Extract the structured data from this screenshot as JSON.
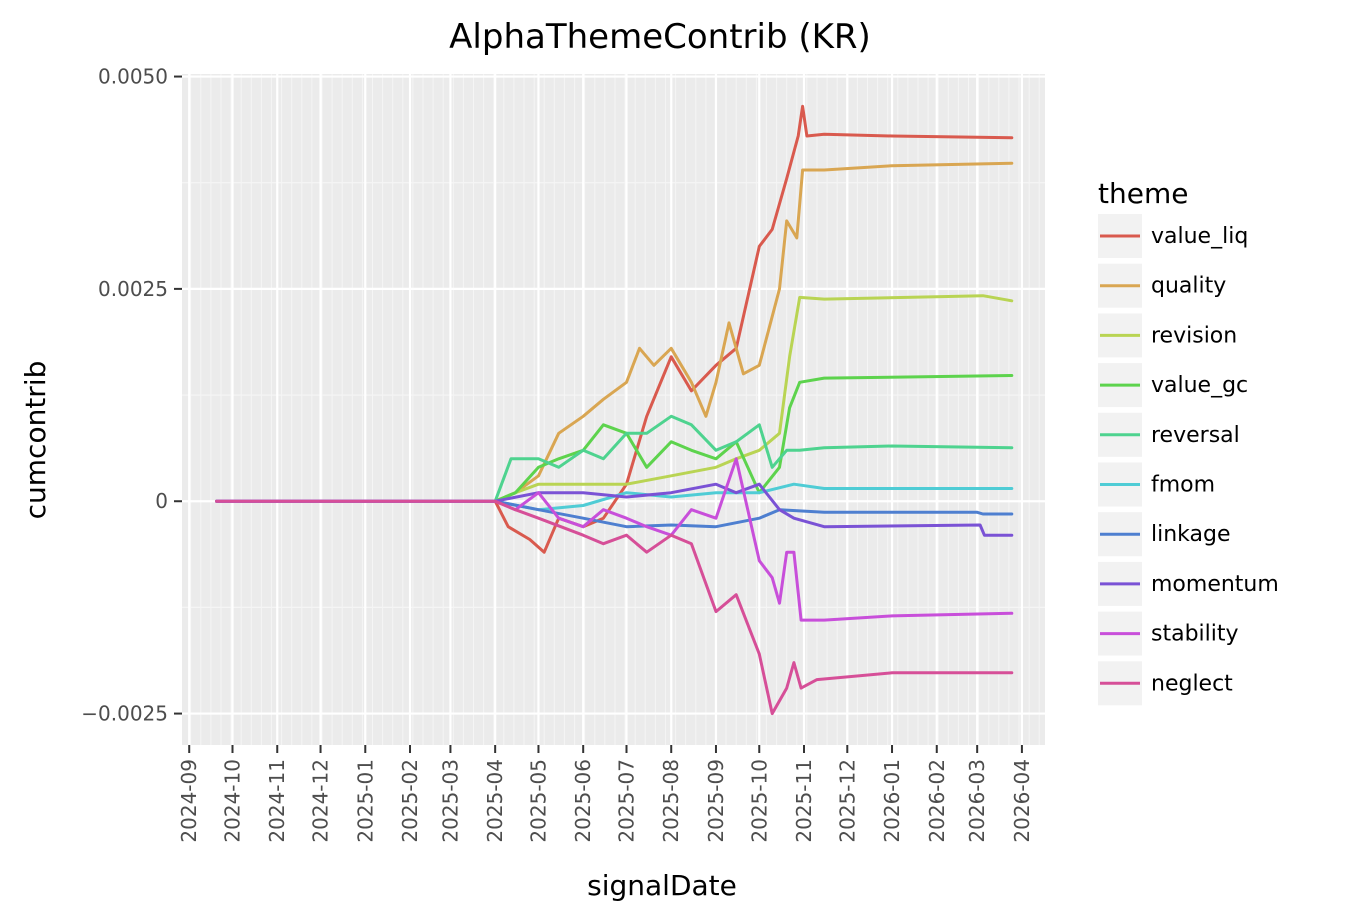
{
  "chart_data": {
    "type": "line",
    "title": "AlphaThemeContrib (KR)",
    "xlabel": "signalDate",
    "ylabel": "cumcontrib",
    "x_ticks": [
      "2024-09",
      "2024-10",
      "2024-11",
      "2024-12",
      "2025-01",
      "2025-02",
      "2025-03",
      "2025-04",
      "2025-05",
      "2025-06",
      "2025-07",
      "2025-08",
      "2025-09",
      "2025-10",
      "2025-11",
      "2025-12",
      "2026-01",
      "2026-02",
      "2026-03",
      "2026-04"
    ],
    "y_ticks": [
      {
        "value": 0.005,
        "label": "0.0050"
      },
      {
        "value": 0.0025,
        "label": "0.0025"
      },
      {
        "value": 0.0,
        "label": "0"
      },
      {
        "value": -0.0025,
        "label": "−0.0025"
      }
    ],
    "xlim": [
      "2024-08-27",
      "2026-04-17"
    ],
    "ylim": [
      -0.00287,
      0.00503
    ],
    "grid": true,
    "legend_title": "theme",
    "legend_position": "right",
    "series": [
      {
        "name": "value_liq",
        "color": "#D95A4E",
        "points": [
          [
            "2024-09-20",
            0
          ],
          [
            "2025-04-01",
            0
          ],
          [
            "2025-04-10",
            -0.0003
          ],
          [
            "2025-04-25",
            -0.00045
          ],
          [
            "2025-05-05",
            -0.0006
          ],
          [
            "2025-05-15",
            -0.0002
          ],
          [
            "2025-06-01",
            -0.0003
          ],
          [
            "2025-06-15",
            -0.0002
          ],
          [
            "2025-07-01",
            0.0002
          ],
          [
            "2025-07-15",
            0.001
          ],
          [
            "2025-08-01",
            0.0017
          ],
          [
            "2025-08-15",
            0.0013
          ],
          [
            "2025-09-01",
            0.0016
          ],
          [
            "2025-09-15",
            0.0018
          ],
          [
            "2025-10-01",
            0.003
          ],
          [
            "2025-10-10",
            0.0032
          ],
          [
            "2025-10-20",
            0.0038
          ],
          [
            "2025-10-28",
            0.0043
          ],
          [
            "2025-10-31",
            0.00465
          ],
          [
            "2025-11-03",
            0.0043
          ],
          [
            "2025-11-15",
            0.00432
          ],
          [
            "2026-01-01",
            0.0043
          ],
          [
            "2026-03-25",
            0.00428
          ]
        ]
      },
      {
        "name": "quality",
        "color": "#D9A652",
        "points": [
          [
            "2024-09-20",
            0
          ],
          [
            "2025-04-01",
            0
          ],
          [
            "2025-04-15",
            0.0001
          ],
          [
            "2025-05-01",
            0.0003
          ],
          [
            "2025-05-15",
            0.0008
          ],
          [
            "2025-06-01",
            0.001
          ],
          [
            "2025-06-15",
            0.0012
          ],
          [
            "2025-07-01",
            0.0014
          ],
          [
            "2025-07-10",
            0.0018
          ],
          [
            "2025-07-20",
            0.0016
          ],
          [
            "2025-08-01",
            0.0018
          ],
          [
            "2025-08-15",
            0.0014
          ],
          [
            "2025-08-25",
            0.001
          ],
          [
            "2025-09-01",
            0.0014
          ],
          [
            "2025-09-10",
            0.0021
          ],
          [
            "2025-09-20",
            0.0015
          ],
          [
            "2025-10-01",
            0.0016
          ],
          [
            "2025-10-15",
            0.0025
          ],
          [
            "2025-10-20",
            0.0033
          ],
          [
            "2025-10-27",
            0.0031
          ],
          [
            "2025-10-31",
            0.0039
          ],
          [
            "2025-11-15",
            0.0039
          ],
          [
            "2026-01-01",
            0.00395
          ],
          [
            "2026-03-25",
            0.00398
          ]
        ]
      },
      {
        "name": "revision",
        "color": "#B9D453",
        "points": [
          [
            "2024-09-20",
            0
          ],
          [
            "2025-04-01",
            0
          ],
          [
            "2025-04-15",
            0.0001
          ],
          [
            "2025-05-01",
            0.0002
          ],
          [
            "2025-06-01",
            0.0002
          ],
          [
            "2025-07-01",
            0.0002
          ],
          [
            "2025-08-01",
            0.0003
          ],
          [
            "2025-09-01",
            0.0004
          ],
          [
            "2025-09-15",
            0.0005
          ],
          [
            "2025-10-01",
            0.0006
          ],
          [
            "2025-10-15",
            0.0008
          ],
          [
            "2025-10-22",
            0.0017
          ],
          [
            "2025-10-29",
            0.0024
          ],
          [
            "2025-11-15",
            0.00238
          ],
          [
            "2026-03-05",
            0.00242
          ],
          [
            "2026-03-25",
            0.00236
          ]
        ]
      },
      {
        "name": "value_gc",
        "color": "#5DD34D",
        "points": [
          [
            "2024-09-20",
            0
          ],
          [
            "2025-04-01",
            0
          ],
          [
            "2025-04-15",
            0.0001
          ],
          [
            "2025-05-01",
            0.0004
          ],
          [
            "2025-05-15",
            0.0005
          ],
          [
            "2025-06-01",
            0.0006
          ],
          [
            "2025-06-15",
            0.0009
          ],
          [
            "2025-07-01",
            0.0008
          ],
          [
            "2025-07-15",
            0.0004
          ],
          [
            "2025-08-01",
            0.0007
          ],
          [
            "2025-08-15",
            0.0006
          ],
          [
            "2025-09-01",
            0.0005
          ],
          [
            "2025-09-15",
            0.0007
          ],
          [
            "2025-10-01",
            0.0001
          ],
          [
            "2025-10-15",
            0.0004
          ],
          [
            "2025-10-22",
            0.0011
          ],
          [
            "2025-10-29",
            0.0014
          ],
          [
            "2025-11-15",
            0.00145
          ],
          [
            "2026-03-25",
            0.00148
          ]
        ]
      },
      {
        "name": "reversal",
        "color": "#4ED38F",
        "points": [
          [
            "2024-09-20",
            0
          ],
          [
            "2025-04-01",
            0
          ],
          [
            "2025-04-12",
            0.0005
          ],
          [
            "2025-05-01",
            0.0005
          ],
          [
            "2025-05-15",
            0.0004
          ],
          [
            "2025-06-01",
            0.0006
          ],
          [
            "2025-06-15",
            0.0005
          ],
          [
            "2025-07-01",
            0.0008
          ],
          [
            "2025-07-15",
            0.0008
          ],
          [
            "2025-08-01",
            0.001
          ],
          [
            "2025-08-15",
            0.0009
          ],
          [
            "2025-09-01",
            0.0006
          ],
          [
            "2025-09-15",
            0.0007
          ],
          [
            "2025-10-01",
            0.0009
          ],
          [
            "2025-10-10",
            0.0004
          ],
          [
            "2025-10-20",
            0.0006
          ],
          [
            "2025-10-29",
            0.0006
          ],
          [
            "2025-11-15",
            0.00063
          ],
          [
            "2026-01-01",
            0.00065
          ],
          [
            "2026-03-25",
            0.00063
          ]
        ]
      },
      {
        "name": "fmom",
        "color": "#4FCCD5",
        "points": [
          [
            "2024-09-20",
            0
          ],
          [
            "2025-04-01",
            0
          ],
          [
            "2025-05-01",
            -0.0001
          ],
          [
            "2025-06-01",
            -5e-05
          ],
          [
            "2025-07-01",
            0.0001
          ],
          [
            "2025-08-01",
            5e-05
          ],
          [
            "2025-09-01",
            0.0001
          ],
          [
            "2025-10-01",
            0.0001
          ],
          [
            "2025-10-25",
            0.0002
          ],
          [
            "2025-11-15",
            0.00015
          ],
          [
            "2026-03-25",
            0.00015
          ]
        ]
      },
      {
        "name": "linkage",
        "color": "#4E7FD0",
        "points": [
          [
            "2024-09-20",
            0
          ],
          [
            "2025-04-01",
            0
          ],
          [
            "2025-05-01",
            -0.0001
          ],
          [
            "2025-06-01",
            -0.0002
          ],
          [
            "2025-07-01",
            -0.0003
          ],
          [
            "2025-08-01",
            -0.00028
          ],
          [
            "2025-09-01",
            -0.0003
          ],
          [
            "2025-10-01",
            -0.0002
          ],
          [
            "2025-10-15",
            -0.0001
          ],
          [
            "2025-11-15",
            -0.00013
          ],
          [
            "2026-03-01",
            -0.00013
          ],
          [
            "2026-03-05",
            -0.00015
          ],
          [
            "2026-03-25",
            -0.00015
          ]
        ]
      },
      {
        "name": "momentum",
        "color": "#7A52D5",
        "points": [
          [
            "2024-09-20",
            0
          ],
          [
            "2025-04-01",
            0
          ],
          [
            "2025-05-01",
            0.0001
          ],
          [
            "2025-06-01",
            0.0001
          ],
          [
            "2025-07-01",
            5e-05
          ],
          [
            "2025-08-01",
            0.0001
          ],
          [
            "2025-09-01",
            0.0002
          ],
          [
            "2025-09-15",
            0.0001
          ],
          [
            "2025-10-01",
            0.0002
          ],
          [
            "2025-10-15",
            -0.0001
          ],
          [
            "2025-10-25",
            -0.0002
          ],
          [
            "2025-11-15",
            -0.0003
          ],
          [
            "2026-03-03",
            -0.00028
          ],
          [
            "2026-03-06",
            -0.0004
          ],
          [
            "2026-03-25",
            -0.0004
          ]
        ]
      },
      {
        "name": "stability",
        "color": "#C84FDA",
        "points": [
          [
            "2024-09-20",
            0
          ],
          [
            "2025-04-01",
            0
          ],
          [
            "2025-04-15",
            -0.0001
          ],
          [
            "2025-05-01",
            0.0001
          ],
          [
            "2025-05-15",
            -0.0002
          ],
          [
            "2025-06-01",
            -0.0003
          ],
          [
            "2025-06-15",
            -0.0001
          ],
          [
            "2025-07-01",
            -0.0002
          ],
          [
            "2025-07-15",
            -0.0003
          ],
          [
            "2025-08-01",
            -0.0004
          ],
          [
            "2025-08-15",
            -0.0001
          ],
          [
            "2025-09-01",
            -0.0002
          ],
          [
            "2025-09-15",
            0.0005
          ],
          [
            "2025-10-01",
            -0.0007
          ],
          [
            "2025-10-10",
            -0.0009
          ],
          [
            "2025-10-15",
            -0.0012
          ],
          [
            "2025-10-20",
            -0.0006
          ],
          [
            "2025-10-25",
            -0.0006
          ],
          [
            "2025-10-30",
            -0.0014
          ],
          [
            "2025-11-15",
            -0.0014
          ],
          [
            "2026-01-01",
            -0.00135
          ],
          [
            "2026-03-25",
            -0.00132
          ]
        ]
      },
      {
        "name": "neglect",
        "color": "#D64F98",
        "points": [
          [
            "2024-09-20",
            0
          ],
          [
            "2025-04-01",
            0
          ],
          [
            "2025-04-15",
            -0.0001
          ],
          [
            "2025-05-01",
            -0.0002
          ],
          [
            "2025-06-01",
            -0.0004
          ],
          [
            "2025-06-15",
            -0.0005
          ],
          [
            "2025-07-01",
            -0.0004
          ],
          [
            "2025-07-15",
            -0.0006
          ],
          [
            "2025-08-01",
            -0.0004
          ],
          [
            "2025-08-15",
            -0.0005
          ],
          [
            "2025-09-01",
            -0.0013
          ],
          [
            "2025-09-15",
            -0.0011
          ],
          [
            "2025-10-01",
            -0.0018
          ],
          [
            "2025-10-10",
            -0.0025
          ],
          [
            "2025-10-20",
            -0.0022
          ],
          [
            "2025-10-25",
            -0.0019
          ],
          [
            "2025-10-30",
            -0.0022
          ],
          [
            "2025-11-10",
            -0.0021
          ],
          [
            "2026-01-01",
            -0.00202
          ],
          [
            "2026-03-25",
            -0.00202
          ]
        ]
      }
    ]
  }
}
